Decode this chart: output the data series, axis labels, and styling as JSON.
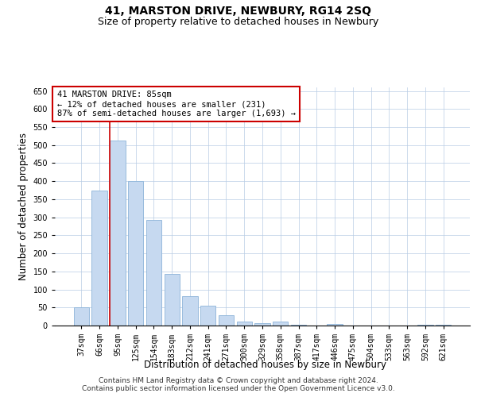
{
  "title": "41, MARSTON DRIVE, NEWBURY, RG14 2SQ",
  "subtitle": "Size of property relative to detached houses in Newbury",
  "xlabel": "Distribution of detached houses by size in Newbury",
  "ylabel": "Number of detached properties",
  "categories": [
    "37sqm",
    "66sqm",
    "95sqm",
    "125sqm",
    "154sqm",
    "183sqm",
    "212sqm",
    "241sqm",
    "271sqm",
    "300sqm",
    "329sqm",
    "358sqm",
    "387sqm",
    "417sqm",
    "446sqm",
    "475sqm",
    "504sqm",
    "533sqm",
    "563sqm",
    "592sqm",
    "621sqm"
  ],
  "values": [
    50,
    375,
    512,
    400,
    293,
    143,
    81,
    54,
    29,
    11,
    7,
    11,
    3,
    0,
    4,
    0,
    0,
    0,
    0,
    3,
    3
  ],
  "bar_color": "#c6d9f0",
  "bar_edge_color": "#8db4d9",
  "annotation_line1": "41 MARSTON DRIVE: 85sqm",
  "annotation_line2": "← 12% of detached houses are smaller (231)",
  "annotation_line3": "87% of semi-detached houses are larger (1,693) →",
  "annotation_box_color": "#ffffff",
  "annotation_box_edge": "#cc0000",
  "vline_color": "#cc0000",
  "vline_x": 1.575,
  "ylim": [
    0,
    660
  ],
  "yticks": [
    0,
    50,
    100,
    150,
    200,
    250,
    300,
    350,
    400,
    450,
    500,
    550,
    600,
    650
  ],
  "grid_color": "#b8cce4",
  "background_color": "#ffffff",
  "footer_line1": "Contains HM Land Registry data © Crown copyright and database right 2024.",
  "footer_line2": "Contains public sector information licensed under the Open Government Licence v3.0.",
  "title_fontsize": 10,
  "subtitle_fontsize": 9,
  "axis_label_fontsize": 8.5,
  "tick_fontsize": 7,
  "footer_fontsize": 6.5,
  "annotation_fontsize": 7.5
}
